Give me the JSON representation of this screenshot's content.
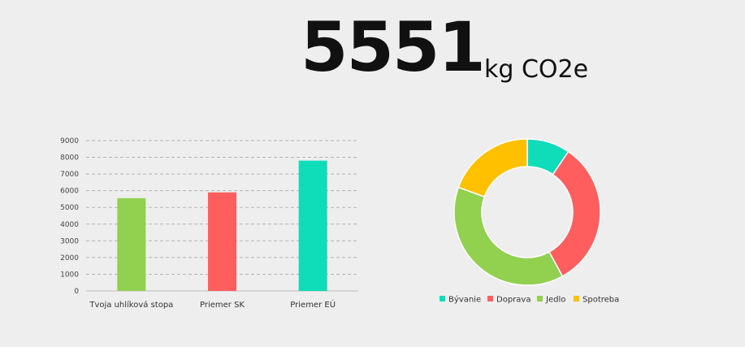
{
  "headline": {
    "total": "5551",
    "unit": "kg CO2e"
  },
  "chart_data": [
    {
      "type": "bar",
      "categories": [
        "Tvoja uhlíková stopa",
        "Priemer SK",
        "Priemer EÚ"
      ],
      "values": [
        5551,
        5900,
        7800
      ],
      "colors": [
        "#92d050",
        "#ff5e5e",
        "#0fdcb8"
      ],
      "ylim": [
        0,
        9000
      ],
      "yticks": [
        0,
        1000,
        2000,
        3000,
        4000,
        5000,
        6000,
        7000,
        8000,
        9000
      ],
      "grid": true,
      "title": "",
      "xlabel": "",
      "ylabel": ""
    },
    {
      "type": "pie",
      "donut": true,
      "categories": [
        "Bývanie",
        "Doprava",
        "Jedlo",
        "Spotreba"
      ],
      "values": [
        9.5,
        32.5,
        38.5,
        19.5
      ],
      "colors": [
        "#0fdcb8",
        "#ff5e5e",
        "#92d050",
        "#ffc000"
      ],
      "legend_position": "bottom"
    }
  ]
}
